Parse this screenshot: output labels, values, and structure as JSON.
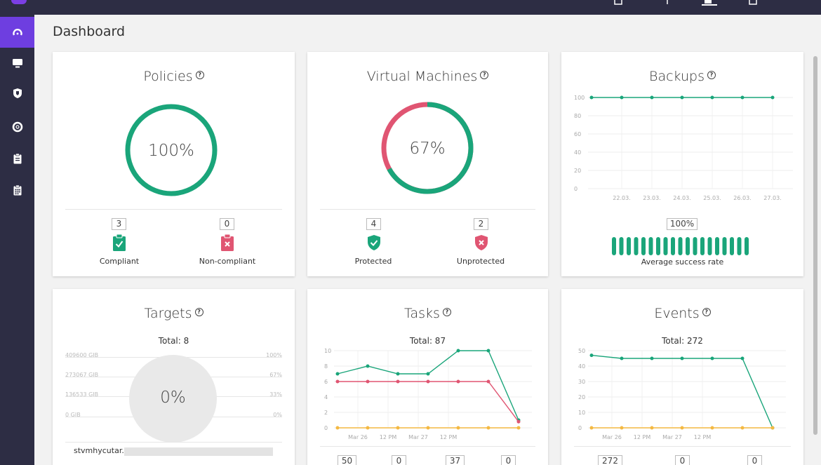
{
  "page": {
    "title": "Dashboard"
  },
  "sidebar": {
    "items": [
      {
        "icon": "speedometer-icon",
        "active": true
      },
      {
        "icon": "monitor-icon",
        "active": false
      },
      {
        "icon": "shield-icon",
        "active": false
      },
      {
        "icon": "lifebuoy-icon",
        "active": false
      },
      {
        "icon": "clipboard-icon",
        "active": false
      },
      {
        "icon": "calendar-icon",
        "active": false
      }
    ]
  },
  "colors": {
    "green": "#1aa57a",
    "red": "#e05572",
    "orange": "#f4b942",
    "purple": "#6e3ee0",
    "dark": "#2d2d44"
  },
  "policies": {
    "title": "Policies",
    "percent_label": "100%",
    "percent": 100,
    "compliant": {
      "count": "3",
      "label": "Compliant"
    },
    "noncompliant": {
      "count": "0",
      "label": "Non-compliant"
    }
  },
  "vms": {
    "title": "Virtual Machines",
    "percent_label": "67%",
    "percent": 67,
    "protected": {
      "count": "4",
      "label": "Protected"
    },
    "unprotected": {
      "count": "2",
      "label": "Unprotected"
    }
  },
  "backups": {
    "title": "Backups",
    "rate_label": "100%",
    "rate_caption": "Average success rate",
    "bar_count": 19,
    "chart_data": {
      "type": "line",
      "x_labels": [
        "22.03.",
        "23.03.",
        "24.03.",
        "25.03.",
        "26.03.",
        "27.03."
      ],
      "y_ticks": [
        "100",
        "80",
        "60",
        "40",
        "20",
        "0"
      ],
      "ylim": [
        0,
        100
      ],
      "series": [
        {
          "values": [
            100,
            100,
            100,
            100,
            100,
            100,
            100
          ],
          "color": "#1aa57a"
        }
      ]
    }
  },
  "targets": {
    "title": "Targets",
    "total": "Total: 8",
    "percent_label": "0%",
    "y_left": [
      "409600 GIB",
      "273067 GIB",
      "136533 GIB",
      "0 GIB"
    ],
    "y_right": [
      "100%",
      "67%",
      "33%",
      "0%"
    ],
    "row_name": "stvmhycutar..."
  },
  "tasks": {
    "title": "Tasks",
    "total": "Total: 87",
    "counts": [
      "50",
      "0",
      "37",
      "0"
    ],
    "chart_data": {
      "type": "line",
      "x_labels": [
        "Mar 26",
        "12 PM",
        "Mar 27",
        "12 PM"
      ],
      "y_ticks": [
        "10",
        "8",
        "6",
        "4",
        "2",
        "0"
      ],
      "ylim": [
        0,
        10
      ],
      "series": [
        {
          "values": [
            7,
            8,
            7,
            7,
            10,
            10,
            1
          ],
          "color": "#1aa57a"
        },
        {
          "values": [
            6,
            6,
            6,
            6,
            6,
            6,
            0.8
          ],
          "color": "#e05572"
        },
        {
          "values": [
            0,
            0,
            0,
            0,
            0,
            0,
            0
          ],
          "color": "#f4b942"
        }
      ]
    }
  },
  "events": {
    "title": "Events",
    "total": "Total: 272",
    "counts": [
      "272",
      "0",
      "0"
    ],
    "chart_data": {
      "type": "line",
      "x_labels": [
        "Mar 26",
        "12 PM",
        "Mar 27",
        "12 PM"
      ],
      "y_ticks": [
        "50",
        "40",
        "30",
        "20",
        "10",
        "0"
      ],
      "ylim": [
        0,
        50
      ],
      "series": [
        {
          "values": [
            47,
            45,
            45,
            45,
            45,
            45,
            0
          ],
          "color": "#1aa57a"
        },
        {
          "values": [
            0,
            0,
            0,
            0,
            0,
            0,
            0
          ],
          "color": "#f4b942"
        }
      ]
    }
  }
}
